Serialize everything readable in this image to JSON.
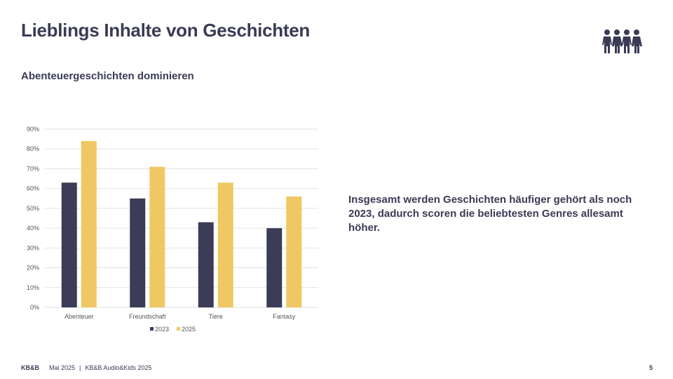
{
  "header": {
    "title": "Lieblings Inhalte von Geschichten",
    "subtitle": "Abenteuergeschichten dominieren",
    "icon": "family-icon"
  },
  "insight": "Insgesamt werden Geschichten häufiger gehört als noch 2023, dadurch scoren die beliebtesten Genres allesamt höher.",
  "footer": {
    "logo": "KB&B",
    "date": "Mai 2025",
    "separator": "|",
    "source": "KB&B Audio&Kids 2025",
    "page": "5"
  },
  "colors": {
    "series_2023": "#3b3c58",
    "series_2025": "#f0c863",
    "grid": "#e2e2e2",
    "text": "#3a3b55"
  },
  "chart_data": {
    "type": "bar",
    "categories": [
      "Abenteuer",
      "Freundschaft",
      "Tiere",
      "Fantasy"
    ],
    "series": [
      {
        "name": "2023",
        "values": [
          63,
          55,
          43,
          40
        ]
      },
      {
        "name": "2025",
        "values": [
          84,
          71,
          63,
          56
        ]
      }
    ],
    "ylim": [
      0,
      90
    ],
    "yticks": [
      "0%",
      "10%",
      "20%",
      "30%",
      "40%",
      "50%",
      "60%",
      "70%",
      "80%",
      "90%"
    ],
    "grid": true,
    "legend": "bottom-center"
  }
}
